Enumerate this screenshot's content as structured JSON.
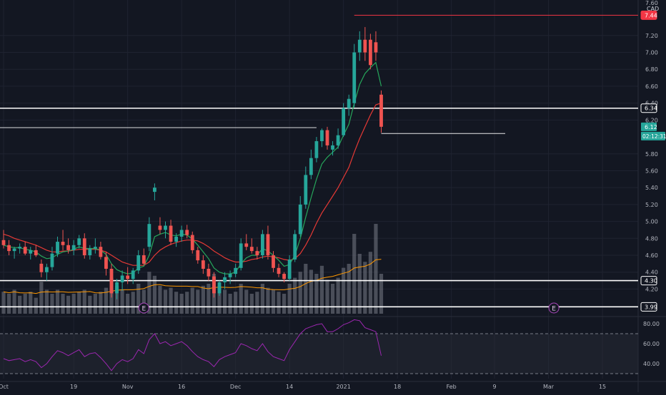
{
  "chart_data": {
    "type": "candlestick",
    "currency": "CAD",
    "price_axis": {
      "min": 3.9,
      "max": 7.62,
      "ticks": [
        4.2,
        4.4,
        4.6,
        4.8,
        5.0,
        5.2,
        5.4,
        5.6,
        5.8,
        6.2,
        6.4,
        6.6,
        6.8,
        7.0,
        7.2
      ],
      "tick_labels": [
        "4.20",
        "4.40",
        "4.60",
        "4.80",
        "5.00",
        "5.20",
        "5.40",
        "5.60",
        "5.80",
        "6.20",
        "6.40",
        "6.60",
        "6.80",
        "7.00",
        "7.20"
      ],
      "top_label": "7.60"
    },
    "rsi_axis": {
      "min": 25,
      "max": 85,
      "tick_values": [
        40,
        60,
        80
      ],
      "tick_labels": [
        "40.00",
        "60.00",
        "80.00"
      ],
      "band_upper": 70,
      "band_lower": 30
    },
    "time_axis": {
      "labels": [
        "Oct",
        "19",
        "Nov",
        "16",
        "Dec",
        "14",
        "2021",
        "18",
        "Feb",
        "9",
        "Mar",
        "15"
      ],
      "label_bar_index": [
        0,
        13,
        23,
        33,
        43,
        53,
        63,
        73,
        83,
        91,
        101,
        111
      ]
    },
    "horizontal_levels": [
      {
        "price": 7.44,
        "label": "7.44",
        "color": "#f23645"
      },
      {
        "price": 6.34,
        "label": "6.34",
        "color": "#ffffff"
      },
      {
        "price": 4.3,
        "label": "4.30",
        "color": "#ffffff"
      },
      {
        "price": 3.99,
        "label": "3.99",
        "color": "#ffffff"
      }
    ],
    "last_price": {
      "value": 6.12,
      "label": "6.12",
      "countdown": "02:12:31",
      "color": "#26a69a"
    },
    "earnings_markers": [
      {
        "bar_index": 26,
        "label": "E"
      },
      {
        "bar_index": 102,
        "label": "E"
      }
    ],
    "candles": [
      [
        4.78,
        4.9,
        4.68,
        4.72
      ],
      [
        4.72,
        4.78,
        4.6,
        4.65
      ],
      [
        4.65,
        4.7,
        4.56,
        4.68
      ],
      [
        4.68,
        4.74,
        4.62,
        4.7
      ],
      [
        4.7,
        4.76,
        4.6,
        4.62
      ],
      [
        4.62,
        4.7,
        4.55,
        4.66
      ],
      [
        4.66,
        4.72,
        4.58,
        4.6
      ],
      [
        4.5,
        4.55,
        4.34,
        4.4
      ],
      [
        4.4,
        4.5,
        4.3,
        4.46
      ],
      [
        4.46,
        4.7,
        4.42,
        4.62
      ],
      [
        4.62,
        4.82,
        4.58,
        4.76
      ],
      [
        4.76,
        4.9,
        4.66,
        4.72
      ],
      [
        4.72,
        4.8,
        4.62,
        4.66
      ],
      [
        4.66,
        4.78,
        4.6,
        4.72
      ],
      [
        4.72,
        4.84,
        4.68,
        4.8
      ],
      [
        4.8,
        4.86,
        4.56,
        4.6
      ],
      [
        4.6,
        4.72,
        4.55,
        4.68
      ],
      [
        4.68,
        4.8,
        4.62,
        4.7
      ],
      [
        4.7,
        4.76,
        4.55,
        4.58
      ],
      [
        4.58,
        4.64,
        4.36,
        4.44
      ],
      [
        4.44,
        4.5,
        4.1,
        4.15
      ],
      [
        4.15,
        4.32,
        4.08,
        4.28
      ],
      [
        4.28,
        4.42,
        4.18,
        4.36
      ],
      [
        4.36,
        4.46,
        4.26,
        4.32
      ],
      [
        4.32,
        4.45,
        4.26,
        4.42
      ],
      [
        4.42,
        4.66,
        4.38,
        4.6
      ],
      [
        4.6,
        4.68,
        4.48,
        4.5
      ],
      [
        4.7,
        5.05,
        4.65,
        4.97
      ],
      [
        5.35,
        5.45,
        5.25,
        5.4
      ],
      [
        4.95,
        5.05,
        4.85,
        4.9
      ],
      [
        4.9,
        5.0,
        4.8,
        4.95
      ],
      [
        4.95,
        5.02,
        4.72,
        4.76
      ],
      [
        4.76,
        4.86,
        4.7,
        4.82
      ],
      [
        4.82,
        4.95,
        4.76,
        4.9
      ],
      [
        4.9,
        4.96,
        4.8,
        4.84
      ],
      [
        4.84,
        4.88,
        4.62,
        4.66
      ],
      [
        4.66,
        4.7,
        4.5,
        4.54
      ],
      [
        4.54,
        4.6,
        4.38,
        4.44
      ],
      [
        4.44,
        4.5,
        4.3,
        4.35
      ],
      [
        4.35,
        4.4,
        4.1,
        4.15
      ],
      [
        4.15,
        4.3,
        4.12,
        4.28
      ],
      [
        4.28,
        4.4,
        4.2,
        4.34
      ],
      [
        4.34,
        4.42,
        4.26,
        4.38
      ],
      [
        4.38,
        4.5,
        4.34,
        4.45
      ],
      [
        4.45,
        4.8,
        4.42,
        4.74
      ],
      [
        4.74,
        4.85,
        4.66,
        4.7
      ],
      [
        4.7,
        4.8,
        4.62,
        4.65
      ],
      [
        4.65,
        4.7,
        4.55,
        4.6
      ],
      [
        4.6,
        4.9,
        4.56,
        4.85
      ],
      [
        4.85,
        4.95,
        4.55,
        4.6
      ],
      [
        4.6,
        4.65,
        4.4,
        4.45
      ],
      [
        4.45,
        4.5,
        4.34,
        4.38
      ],
      [
        4.38,
        4.4,
        4.28,
        4.32
      ],
      [
        4.32,
        4.6,
        4.3,
        4.55
      ],
      [
        4.55,
        4.9,
        4.52,
        4.85
      ],
      [
        4.85,
        5.3,
        4.82,
        5.2
      ],
      [
        5.2,
        5.65,
        5.15,
        5.55
      ],
      [
        5.55,
        5.85,
        5.5,
        5.75
      ],
      [
        5.75,
        6.0,
        5.7,
        5.95
      ],
      [
        5.95,
        6.1,
        5.88,
        6.08
      ],
      [
        6.08,
        6.12,
        5.85,
        5.9
      ],
      [
        5.85,
        5.95,
        5.78,
        5.9
      ],
      [
        5.9,
        6.1,
        5.86,
        6.02
      ],
      [
        6.02,
        6.4,
        6.0,
        6.34
      ],
      [
        6.34,
        6.5,
        6.25,
        6.45
      ],
      [
        6.4,
        7.1,
        6.35,
        7.0
      ],
      [
        7.0,
        7.25,
        6.9,
        7.15
      ],
      [
        7.15,
        7.3,
        6.9,
        7.0
      ],
      [
        7.15,
        7.22,
        6.8,
        6.85
      ],
      [
        7.12,
        7.25,
        6.9,
        7.0
      ],
      [
        6.5,
        6.55,
        6.05,
        6.12
      ]
    ],
    "volume_scale_max": 1.0,
    "volumes": [
      0.22,
      0.2,
      0.24,
      0.18,
      0.2,
      0.22,
      0.16,
      0.32,
      0.24,
      0.2,
      0.24,
      0.2,
      0.18,
      0.2,
      0.22,
      0.24,
      0.18,
      0.2,
      0.22,
      0.26,
      0.36,
      0.28,
      0.24,
      0.2,
      0.22,
      0.3,
      0.24,
      0.42,
      0.38,
      0.28,
      0.24,
      0.26,
      0.22,
      0.2,
      0.22,
      0.26,
      0.24,
      0.28,
      0.3,
      0.4,
      0.28,
      0.24,
      0.2,
      0.22,
      0.3,
      0.24,
      0.2,
      0.22,
      0.3,
      0.26,
      0.24,
      0.22,
      0.2,
      0.3,
      0.36,
      0.42,
      0.5,
      0.44,
      0.4,
      0.48,
      0.34,
      0.3,
      0.36,
      0.46,
      0.5,
      0.8,
      0.6,
      0.52,
      0.62,
      0.9,
      0.4
    ],
    "ma_fast": [
      4.72,
      4.7,
      4.69,
      4.69,
      4.67,
      4.66,
      4.64,
      4.59,
      4.56,
      4.57,
      4.61,
      4.64,
      4.65,
      4.67,
      4.7,
      4.68,
      4.68,
      4.68,
      4.66,
      4.61,
      4.5,
      4.43,
      4.4,
      4.38,
      4.39,
      4.45,
      4.47,
      4.6,
      4.82,
      4.85,
      4.87,
      4.84,
      4.83,
      4.85,
      4.84,
      4.79,
      4.72,
      4.64,
      4.56,
      4.45,
      4.4,
      4.38,
      4.38,
      4.4,
      4.5,
      4.57,
      4.6,
      4.6,
      4.68,
      4.65,
      4.6,
      4.54,
      4.47,
      4.49,
      4.6,
      4.8,
      5.05,
      5.28,
      5.5,
      5.68,
      5.76,
      5.82,
      5.88,
      6.02,
      6.15,
      6.4,
      6.62,
      6.75,
      6.82,
      6.88,
      6.6
    ],
    "ma_slow": [
      4.85,
      4.83,
      4.8,
      4.78,
      4.76,
      4.74,
      4.72,
      4.69,
      4.66,
      4.64,
      4.64,
      4.65,
      4.65,
      4.66,
      4.67,
      4.67,
      4.67,
      4.67,
      4.66,
      4.64,
      4.6,
      4.56,
      4.52,
      4.5,
      4.48,
      4.48,
      4.48,
      4.52,
      4.6,
      4.66,
      4.7,
      4.73,
      4.75,
      4.77,
      4.78,
      4.78,
      4.77,
      4.74,
      4.7,
      4.65,
      4.61,
      4.57,
      4.54,
      4.52,
      4.52,
      4.53,
      4.55,
      4.56,
      4.58,
      4.59,
      4.58,
      4.57,
      4.55,
      4.54,
      4.56,
      4.62,
      4.72,
      4.84,
      4.98,
      5.1,
      5.2,
      5.3,
      5.4,
      5.52,
      5.64,
      5.82,
      5.98,
      6.12,
      6.26,
      6.38,
      6.4
    ],
    "rsi": [
      45,
      43,
      44,
      45,
      42,
      44,
      42,
      36,
      40,
      47,
      53,
      51,
      48,
      51,
      54,
      47,
      50,
      51,
      46,
      40,
      33,
      40,
      44,
      42,
      45,
      54,
      50,
      64,
      70,
      60,
      62,
      58,
      60,
      62,
      58,
      52,
      47,
      44,
      42,
      37,
      44,
      47,
      49,
      51,
      60,
      58,
      55,
      53,
      60,
      52,
      47,
      45,
      43,
      54,
      62,
      70,
      75,
      77,
      79,
      80,
      72,
      72,
      75,
      79,
      81,
      84,
      83,
      76,
      74,
      72,
      48
    ],
    "colors": {
      "up": "#26a69a",
      "down": "#ef5350",
      "ma_fast": "#26a65b",
      "ma_slow": "#e53935",
      "rsi": "#9c27b0",
      "volume": "#787b86",
      "volume_ma": "#ff9800"
    }
  }
}
